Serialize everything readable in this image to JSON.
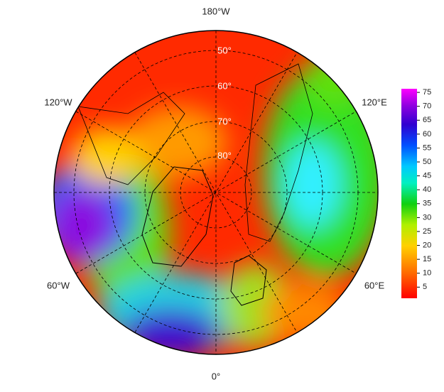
{
  "map": {
    "longitude_labels": [
      "180°W",
      "120°W",
      "120°E",
      "60°W",
      "60°E",
      "0°"
    ],
    "latitude_labels": [
      "50°",
      "60°",
      "70°",
      "80°"
    ]
  },
  "colorbar": {
    "lim": [
      1,
      76.3
    ],
    "ticks": [
      5,
      10,
      15,
      20,
      25,
      30,
      35,
      40,
      45,
      50,
      55,
      60,
      65,
      70,
      75
    ]
  }
}
